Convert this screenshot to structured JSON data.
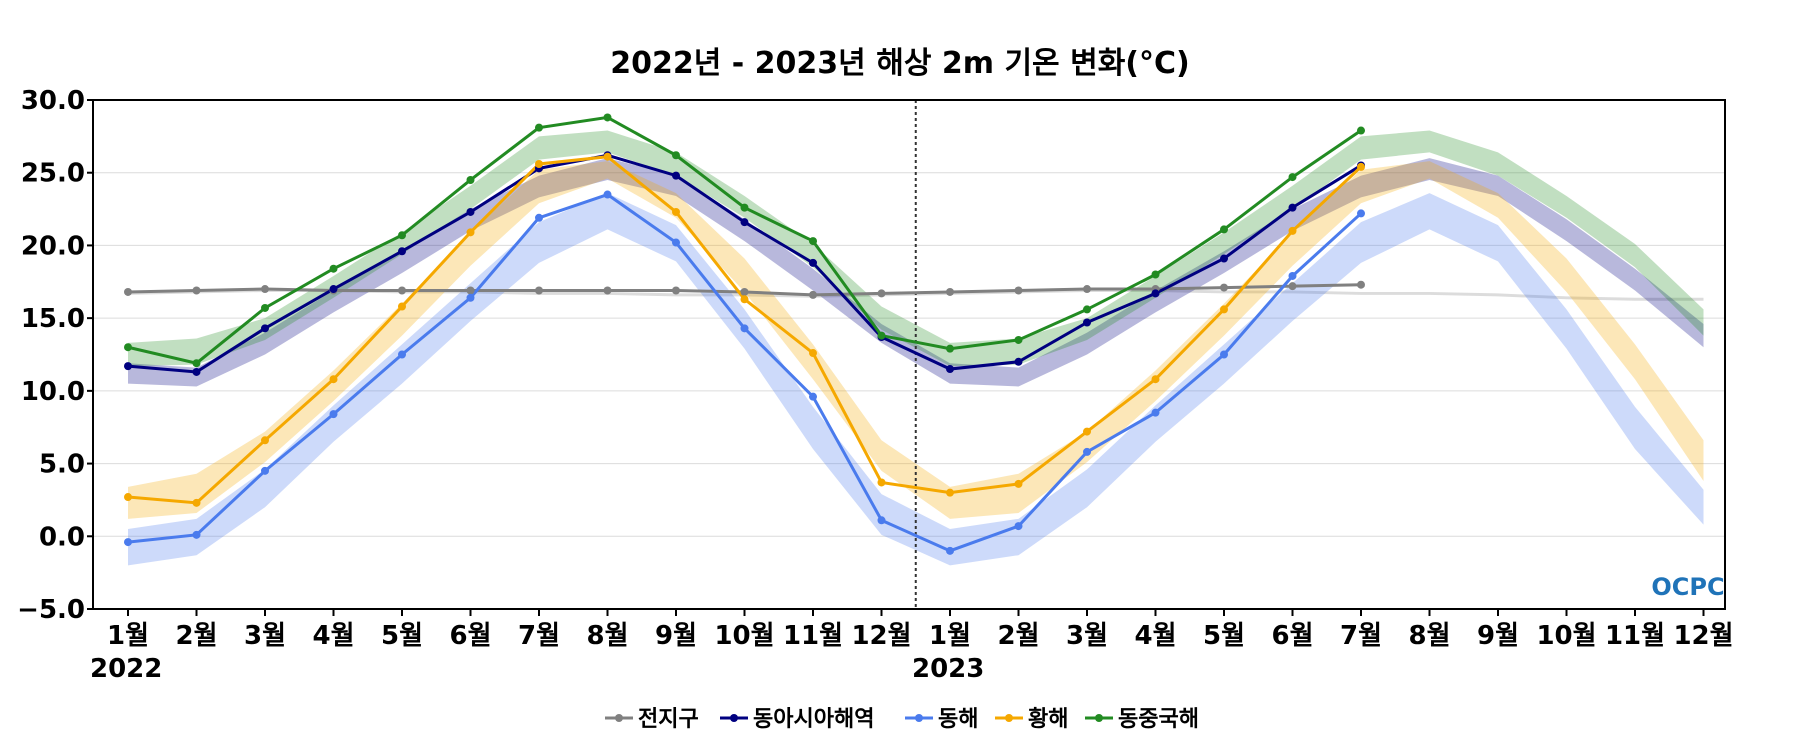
{
  "chart_data": {
    "type": "line",
    "title": "2022년 - 2023년 해상 2m 기온 변화(°C)",
    "xlabel": "",
    "ylabel": "",
    "ylim": [
      -5,
      30
    ],
    "y_ticks": [
      "30.0",
      "25.0",
      "20.0",
      "15.0",
      "10.0",
      "5.0",
      "0.0",
      "−5.0"
    ],
    "y_tick_values": [
      30,
      25,
      20,
      15,
      10,
      5,
      0,
      -5
    ],
    "categories": [
      "1월",
      "2월",
      "3월",
      "4월",
      "5월",
      "6월",
      "7월",
      "8월",
      "9월",
      "10월",
      "11월",
      "12월",
      "1월",
      "2월",
      "3월",
      "4월",
      "5월",
      "6월",
      "7월",
      "8월",
      "9월",
      "10월",
      "11월",
      "12월"
    ],
    "year_labels": [
      {
        "label": "2022",
        "index": 0
      },
      {
        "label": "2023",
        "index": 12
      }
    ],
    "divider_after_index": 11,
    "grid": true,
    "legend_position": "bottom",
    "series": [
      {
        "name": "전지구",
        "color": "#808080",
        "values": [
          16.8,
          16.9,
          17.0,
          16.9,
          16.9,
          16.9,
          16.9,
          16.9,
          16.9,
          16.8,
          16.6,
          16.7,
          16.8,
          16.9,
          17.0,
          17.0,
          17.1,
          17.2,
          17.3,
          null,
          null,
          null,
          null,
          null
        ],
        "band": [
          [
            16.6,
            16.8
          ],
          [
            16.7,
            16.9
          ],
          [
            16.8,
            17.0
          ],
          [
            16.8,
            17.0
          ],
          [
            16.7,
            16.9
          ],
          [
            16.7,
            16.9
          ],
          [
            16.6,
            16.8
          ],
          [
            16.6,
            16.8
          ],
          [
            16.5,
            16.7
          ],
          [
            16.5,
            16.7
          ],
          [
            16.4,
            16.6
          ],
          [
            16.5,
            16.7
          ],
          [
            16.6,
            16.8
          ],
          [
            16.7,
            16.9
          ],
          [
            16.8,
            17.0
          ],
          [
            16.8,
            17.0
          ],
          [
            16.7,
            16.9
          ],
          [
            16.7,
            16.9
          ],
          [
            16.6,
            16.8
          ],
          [
            16.6,
            16.8
          ],
          [
            16.5,
            16.7
          ],
          [
            16.3,
            16.5
          ],
          [
            16.2,
            16.4
          ],
          [
            16.2,
            16.4
          ]
        ]
      },
      {
        "name": "동아시아해역",
        "color": "#000080",
        "values": [
          11.7,
          11.3,
          14.3,
          17.0,
          19.6,
          22.3,
          25.3,
          26.2,
          24.8,
          21.6,
          18.8,
          13.7,
          11.5,
          12.0,
          14.7,
          16.7,
          19.1,
          22.6,
          25.5,
          null,
          null,
          null,
          null,
          null
        ],
        "band": [
          [
            10.5,
            11.9
          ],
          [
            10.3,
            11.6
          ],
          [
            12.5,
            14.0
          ],
          [
            15.4,
            16.9
          ],
          [
            18.1,
            19.6
          ],
          [
            21.0,
            22.5
          ],
          [
            23.3,
            24.8
          ],
          [
            24.5,
            26.0
          ],
          [
            23.4,
            24.8
          ],
          [
            20.3,
            21.8
          ],
          [
            16.9,
            18.4
          ],
          [
            13.3,
            14.6
          ],
          [
            10.5,
            11.9
          ],
          [
            10.3,
            11.6
          ],
          [
            12.5,
            14.0
          ],
          [
            15.4,
            16.9
          ],
          [
            18.1,
            19.6
          ],
          [
            21.0,
            22.5
          ],
          [
            23.3,
            24.8
          ],
          [
            24.5,
            26.0
          ],
          [
            23.4,
            24.8
          ],
          [
            20.3,
            21.8
          ],
          [
            16.9,
            18.4
          ],
          [
            13.0,
            14.6
          ]
        ]
      },
      {
        "name": "동해",
        "color": "#4a7bed",
        "values": [
          -0.4,
          0.1,
          4.5,
          8.4,
          12.5,
          16.4,
          21.9,
          23.5,
          20.2,
          14.3,
          9.6,
          1.1,
          -1.0,
          0.7,
          5.8,
          8.5,
          12.5,
          17.9,
          22.2,
          null,
          null,
          null,
          null,
          null
        ],
        "band": [
          [
            -2.0,
            0.5
          ],
          [
            -1.3,
            1.2
          ],
          [
            2.0,
            4.6
          ],
          [
            6.5,
            9.0
          ],
          [
            10.5,
            13.2
          ],
          [
            14.8,
            17.4
          ],
          [
            18.8,
            21.6
          ],
          [
            21.1,
            23.6
          ],
          [
            18.9,
            21.4
          ],
          [
            12.9,
            15.6
          ],
          [
            6.0,
            8.9
          ],
          [
            0.1,
            2.9
          ],
          [
            -2.0,
            0.5
          ],
          [
            -1.3,
            1.2
          ],
          [
            2.0,
            4.6
          ],
          [
            6.5,
            9.0
          ],
          [
            10.5,
            13.2
          ],
          [
            14.8,
            17.4
          ],
          [
            18.8,
            21.6
          ],
          [
            21.1,
            23.6
          ],
          [
            18.9,
            21.4
          ],
          [
            12.9,
            15.6
          ],
          [
            6.0,
            8.9
          ],
          [
            0.8,
            3.2
          ]
        ]
      },
      {
        "name": "황해",
        "color": "#f5a800",
        "values": [
          2.7,
          2.3,
          6.6,
          10.8,
          15.8,
          20.9,
          25.6,
          26.1,
          22.3,
          16.3,
          12.6,
          3.7,
          3.0,
          3.6,
          7.2,
          10.8,
          15.6,
          21.0,
          25.4,
          null,
          null,
          null,
          null,
          null
        ],
        "band": [
          [
            1.2,
            3.4
          ],
          [
            1.6,
            4.3
          ],
          [
            5.1,
            7.2
          ],
          [
            9.3,
            11.4
          ],
          [
            13.8,
            16.0
          ],
          [
            18.6,
            20.9
          ],
          [
            22.9,
            25.2
          ],
          [
            24.6,
            25.8
          ],
          [
            21.9,
            23.6
          ],
          [
            16.8,
            19.1
          ],
          [
            10.8,
            13.2
          ],
          [
            4.5,
            6.6
          ],
          [
            1.2,
            3.4
          ],
          [
            1.6,
            4.3
          ],
          [
            5.1,
            7.2
          ],
          [
            9.3,
            11.4
          ],
          [
            13.8,
            16.0
          ],
          [
            18.6,
            20.9
          ],
          [
            22.9,
            25.2
          ],
          [
            24.6,
            25.8
          ],
          [
            21.9,
            23.6
          ],
          [
            16.8,
            19.1
          ],
          [
            10.8,
            13.2
          ],
          [
            3.8,
            6.6
          ]
        ]
      },
      {
        "name": "동중국해",
        "color": "#228b22",
        "values": [
          13.0,
          11.9,
          15.7,
          18.4,
          20.7,
          24.5,
          28.1,
          28.8,
          26.2,
          22.6,
          20.3,
          13.8,
          12.9,
          13.5,
          15.6,
          18.0,
          21.1,
          24.7,
          27.9,
          null,
          null,
          null,
          null,
          null
        ],
        "band": [
          [
            11.7,
            13.3
          ],
          [
            11.8,
            13.6
          ],
          [
            13.5,
            15.0
          ],
          [
            16.4,
            17.9
          ],
          [
            19.4,
            20.9
          ],
          [
            22.5,
            24.1
          ],
          [
            25.9,
            27.5
          ],
          [
            26.4,
            27.9
          ],
          [
            24.8,
            26.4
          ],
          [
            21.9,
            23.4
          ],
          [
            18.5,
            20.1
          ],
          [
            14.2,
            15.8
          ],
          [
            11.7,
            13.3
          ],
          [
            11.8,
            13.6
          ],
          [
            13.5,
            15.0
          ],
          [
            16.4,
            17.9
          ],
          [
            19.4,
            20.9
          ],
          [
            22.5,
            24.1
          ],
          [
            25.9,
            27.5
          ],
          [
            26.4,
            27.9
          ],
          [
            24.8,
            26.4
          ],
          [
            21.9,
            23.4
          ],
          [
            18.5,
            20.1
          ],
          [
            13.8,
            15.6
          ]
        ]
      }
    ]
  },
  "logo": {
    "text": "OCPC",
    "color": "#1f73b8"
  }
}
